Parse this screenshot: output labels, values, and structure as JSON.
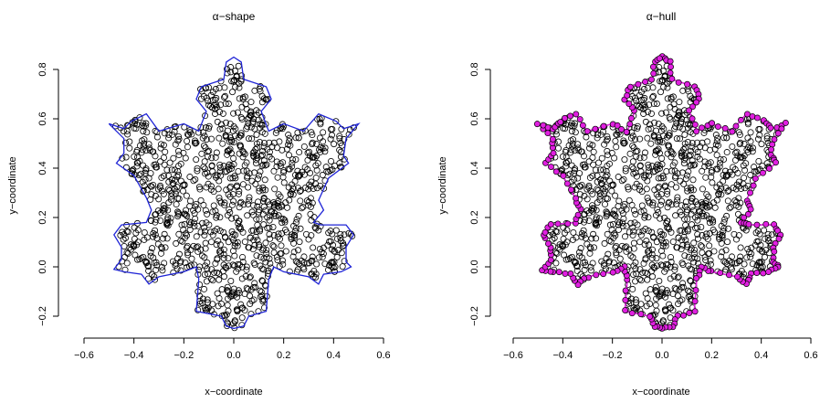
{
  "chart_data": [
    {
      "type": "scatter",
      "title": "α−shape",
      "xlabel": "x−coordinate",
      "ylabel": "y−coordinate",
      "xlim": [
        -0.6,
        0.6
      ],
      "ylim": [
        -0.25,
        0.87
      ],
      "x_ticks": [
        "−0.6",
        "−0.4",
        "−0.2",
        "0.0",
        "0.2",
        "0.4",
        "0.6"
      ],
      "y_ticks": [
        "−0.2",
        "0.0",
        "0.2",
        "0.4",
        "0.6",
        "0.8"
      ],
      "point_style": "open circles, black",
      "boundary": {
        "color": "#1f24d6",
        "vertices": [
          [
            0.0,
            0.85
          ],
          [
            0.03,
            0.83
          ],
          [
            0.04,
            0.76
          ],
          [
            0.13,
            0.73
          ],
          [
            0.15,
            0.68
          ],
          [
            0.11,
            0.63
          ],
          [
            0.14,
            0.55
          ],
          [
            0.2,
            0.58
          ],
          [
            0.28,
            0.55
          ],
          [
            0.34,
            0.62
          ],
          [
            0.41,
            0.59
          ],
          [
            0.44,
            0.56
          ],
          [
            0.5,
            0.58
          ],
          [
            0.45,
            0.52
          ],
          [
            0.44,
            0.45
          ],
          [
            0.46,
            0.42
          ],
          [
            0.38,
            0.36
          ],
          [
            0.34,
            0.27
          ],
          [
            0.36,
            0.23
          ],
          [
            0.32,
            0.18
          ],
          [
            0.35,
            0.17
          ],
          [
            0.45,
            0.17
          ],
          [
            0.48,
            0.13
          ],
          [
            0.45,
            0.08
          ],
          [
            0.45,
            0.02
          ],
          [
            0.47,
            0.0
          ],
          [
            0.43,
            -0.02
          ],
          [
            0.36,
            -0.03
          ],
          [
            0.34,
            -0.07
          ],
          [
            0.3,
            -0.04
          ],
          [
            0.2,
            -0.02
          ],
          [
            0.16,
            0.0
          ],
          [
            0.14,
            -0.05
          ],
          [
            0.13,
            -0.18
          ],
          [
            0.06,
            -0.2
          ],
          [
            0.04,
            -0.24
          ],
          [
            0.0,
            -0.25
          ],
          [
            -0.03,
            -0.24
          ],
          [
            -0.05,
            -0.2
          ],
          [
            -0.15,
            -0.18
          ],
          [
            -0.14,
            -0.05
          ],
          [
            -0.15,
            0.0
          ],
          [
            -0.2,
            -0.02
          ],
          [
            -0.3,
            -0.04
          ],
          [
            -0.34,
            -0.07
          ],
          [
            -0.37,
            -0.03
          ],
          [
            -0.44,
            -0.02
          ],
          [
            -0.48,
            -0.01
          ],
          [
            -0.45,
            0.03
          ],
          [
            -0.45,
            0.08
          ],
          [
            -0.48,
            0.13
          ],
          [
            -0.45,
            0.17
          ],
          [
            -0.35,
            0.18
          ],
          [
            -0.33,
            0.23
          ],
          [
            -0.35,
            0.28
          ],
          [
            -0.4,
            0.37
          ],
          [
            -0.47,
            0.42
          ],
          [
            -0.44,
            0.46
          ],
          [
            -0.44,
            0.52
          ],
          [
            -0.5,
            0.58
          ],
          [
            -0.44,
            0.56
          ],
          [
            -0.41,
            0.59
          ],
          [
            -0.35,
            0.62
          ],
          [
            -0.3,
            0.55
          ],
          [
            -0.2,
            0.58
          ],
          [
            -0.14,
            0.55
          ],
          [
            -0.11,
            0.63
          ],
          [
            -0.15,
            0.68
          ],
          [
            -0.13,
            0.73
          ],
          [
            -0.04,
            0.76
          ],
          [
            -0.03,
            0.83
          ]
        ]
      }
    },
    {
      "type": "scatter",
      "title": "α−hull",
      "xlabel": "x−coordinate",
      "ylabel": "y−coordinate",
      "xlim": [
        -0.6,
        0.6
      ],
      "ylim": [
        -0.25,
        0.87
      ],
      "x_ticks": [
        "−0.6",
        "−0.4",
        "−0.2",
        "0.0",
        "0.2",
        "0.4",
        "0.6"
      ],
      "y_ticks": [
        "−0.2",
        "0.0",
        "0.2",
        "0.4",
        "0.6",
        "0.8"
      ],
      "point_style": "open circles, black; hull points filled magenta",
      "boundary": {
        "color": "#e020e0",
        "vertices": [
          [
            0.0,
            0.85
          ],
          [
            0.03,
            0.83
          ],
          [
            0.04,
            0.76
          ],
          [
            0.13,
            0.73
          ],
          [
            0.15,
            0.68
          ],
          [
            0.11,
            0.63
          ],
          [
            0.14,
            0.55
          ],
          [
            0.2,
            0.58
          ],
          [
            0.28,
            0.55
          ],
          [
            0.34,
            0.62
          ],
          [
            0.41,
            0.59
          ],
          [
            0.44,
            0.56
          ],
          [
            0.5,
            0.58
          ],
          [
            0.45,
            0.52
          ],
          [
            0.44,
            0.45
          ],
          [
            0.46,
            0.42
          ],
          [
            0.38,
            0.36
          ],
          [
            0.34,
            0.27
          ],
          [
            0.36,
            0.23
          ],
          [
            0.32,
            0.18
          ],
          [
            0.35,
            0.17
          ],
          [
            0.45,
            0.17
          ],
          [
            0.48,
            0.13
          ],
          [
            0.45,
            0.08
          ],
          [
            0.45,
            0.02
          ],
          [
            0.47,
            0.0
          ],
          [
            0.43,
            -0.02
          ],
          [
            0.36,
            -0.03
          ],
          [
            0.34,
            -0.07
          ],
          [
            0.3,
            -0.04
          ],
          [
            0.2,
            -0.02
          ],
          [
            0.16,
            0.0
          ],
          [
            0.14,
            -0.05
          ],
          [
            0.13,
            -0.18
          ],
          [
            0.06,
            -0.2
          ],
          [
            0.04,
            -0.24
          ],
          [
            0.0,
            -0.25
          ],
          [
            -0.03,
            -0.24
          ],
          [
            -0.05,
            -0.2
          ],
          [
            -0.15,
            -0.18
          ],
          [
            -0.14,
            -0.05
          ],
          [
            -0.15,
            0.0
          ],
          [
            -0.2,
            -0.02
          ],
          [
            -0.3,
            -0.04
          ],
          [
            -0.34,
            -0.07
          ],
          [
            -0.37,
            -0.03
          ],
          [
            -0.44,
            -0.02
          ],
          [
            -0.48,
            -0.01
          ],
          [
            -0.45,
            0.03
          ],
          [
            -0.45,
            0.08
          ],
          [
            -0.48,
            0.13
          ],
          [
            -0.45,
            0.17
          ],
          [
            -0.35,
            0.18
          ],
          [
            -0.33,
            0.23
          ],
          [
            -0.35,
            0.28
          ],
          [
            -0.4,
            0.37
          ],
          [
            -0.47,
            0.42
          ],
          [
            -0.44,
            0.46
          ],
          [
            -0.44,
            0.52
          ],
          [
            -0.5,
            0.58
          ],
          [
            -0.44,
            0.56
          ],
          [
            -0.41,
            0.59
          ],
          [
            -0.35,
            0.62
          ],
          [
            -0.3,
            0.55
          ],
          [
            -0.2,
            0.58
          ],
          [
            -0.14,
            0.55
          ],
          [
            -0.11,
            0.63
          ],
          [
            -0.15,
            0.68
          ],
          [
            -0.13,
            0.73
          ],
          [
            -0.04,
            0.76
          ],
          [
            -0.03,
            0.83
          ]
        ]
      }
    }
  ]
}
